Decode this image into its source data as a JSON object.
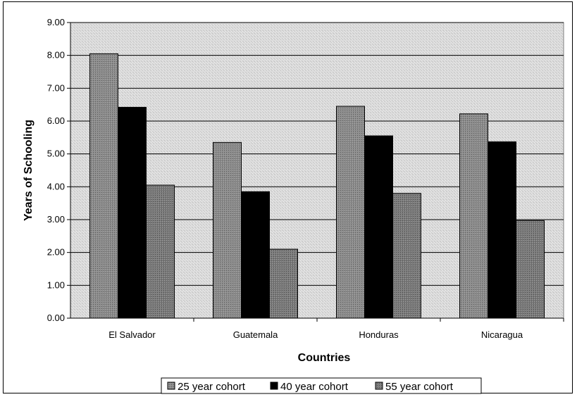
{
  "chart_data": {
    "type": "bar",
    "title": "",
    "xlabel": "Countries",
    "ylabel": "Years of Schooling",
    "categories": [
      "El Salvador",
      "Guatemala",
      "Honduras",
      "Nicaragua"
    ],
    "series": [
      {
        "name": "25 year cohort",
        "values": [
          8.05,
          5.35,
          6.45,
          6.22
        ],
        "color": "#8c8c8c"
      },
      {
        "name": "40 year cohort",
        "values": [
          6.42,
          3.85,
          5.55,
          5.37
        ],
        "color": "#000000"
      },
      {
        "name": "55 year cohort",
        "values": [
          4.05,
          2.1,
          3.8,
          2.97
        ],
        "color": "#7a7a7a"
      }
    ],
    "ylim": [
      0,
      9
    ],
    "yticks": [
      "0.00",
      "1.00",
      "2.00",
      "3.00",
      "4.00",
      "5.00",
      "6.00",
      "7.00",
      "8.00",
      "9.00"
    ],
    "grid": true,
    "legend_position": "bottom",
    "plot_background": "#dcdcdc"
  }
}
